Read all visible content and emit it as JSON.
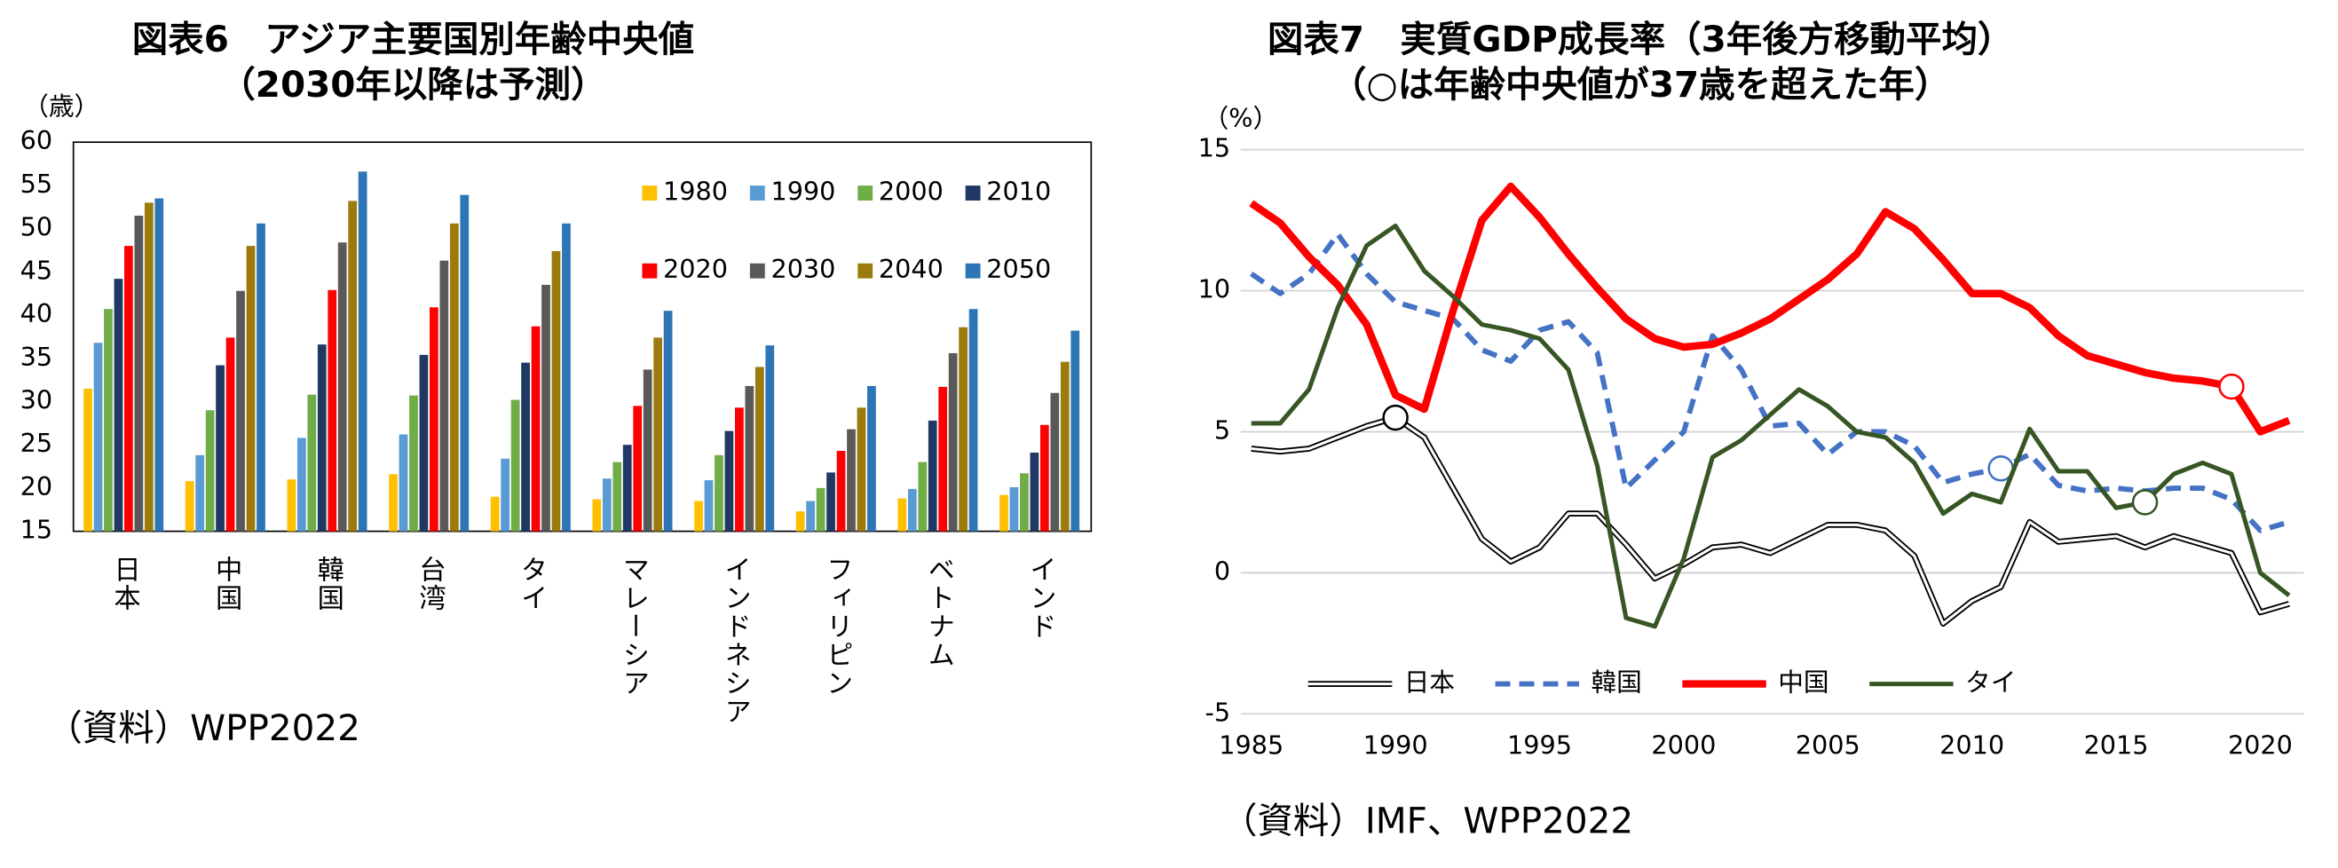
{
  "chart_data": [
    {
      "type": "bar",
      "title": "図表6　アジア主要国別年齢中央値",
      "subtitle": "（2030年以降は予測）",
      "y_label": "（歳）",
      "source": "（資料）WPP2022",
      "categories": [
        "日本",
        "中国",
        "韓国",
        "台湾",
        "タイ",
        "マレーシア",
        "インドネシア",
        "フィリピン",
        "ベトナム",
        "インド"
      ],
      "series": [
        {
          "name": "1980",
          "color": "#ffc000",
          "values": [
            31.5,
            20.8,
            21,
            21.6,
            19,
            18.7,
            18.5,
            17.3,
            18.8,
            19.2
          ]
        },
        {
          "name": "1990",
          "color": "#5b9bd5",
          "values": [
            36.8,
            23.8,
            25.8,
            26.2,
            23.4,
            21.1,
            20.9,
            18.5,
            19.9,
            20.1
          ]
        },
        {
          "name": "2000",
          "color": "#70ad47",
          "values": [
            40.7,
            29,
            30.8,
            30.7,
            30.2,
            23,
            23.8,
            20,
            23,
            21.7
          ]
        },
        {
          "name": "2010",
          "color": "#203864",
          "values": [
            44.2,
            34.2,
            36.6,
            35.4,
            34.5,
            25,
            26.6,
            21.8,
            27.8,
            24.1
          ]
        },
        {
          "name": "2020",
          "color": "#ff0000",
          "values": [
            48,
            37.4,
            42.9,
            40.9,
            38.7,
            29.5,
            29.3,
            24.3,
            31.7,
            27.3
          ]
        },
        {
          "name": "2030",
          "color": "#595959",
          "values": [
            51.5,
            42.8,
            48.4,
            46.3,
            43.5,
            33.7,
            31.8,
            26.8,
            35.6,
            31
          ]
        },
        {
          "name": "2040",
          "color": "#9c7a0c",
          "values": [
            53,
            48,
            53.2,
            50.6,
            47.4,
            37.4,
            34,
            29.3,
            38.6,
            34.6
          ]
        },
        {
          "name": "2050",
          "color": "#2e75b6",
          "values": [
            53.5,
            50.6,
            56.6,
            53.9,
            50.6,
            40.5,
            36.5,
            31.8,
            40.7,
            38.2
          ]
        }
      ],
      "ylim": [
        15,
        60
      ],
      "yticks": [
        15,
        20,
        25,
        30,
        35,
        40,
        45,
        50,
        55,
        60
      ],
      "grid": false,
      "legend": "upper right"
    },
    {
      "type": "line",
      "title": "図表7　実質GDP成長率（3年後方移動平均）",
      "subtitle": "（○は年齢中央値が37歳を超えた年）",
      "y_label": "（%）",
      "source": "（資料）IMF、WPP2022",
      "x": [
        1985,
        1986,
        1987,
        1988,
        1989,
        1990,
        1991,
        1992,
        1993,
        1994,
        1995,
        1996,
        1997,
        1998,
        1999,
        2000,
        2001,
        2002,
        2003,
        2004,
        2005,
        2006,
        2007,
        2008,
        2009,
        2010,
        2011,
        2012,
        2013,
        2014,
        2015,
        2016,
        2017,
        2018,
        2019,
        2020,
        2021
      ],
      "series": [
        {
          "name": "日本",
          "color": "#000000",
          "style": "double",
          "highlight_x": 1990,
          "values": [
            4.4,
            4.3,
            4.4,
            4.8,
            5.2,
            5.5,
            4.8,
            3.0,
            1.2,
            0.4,
            0.9,
            2.1,
            2.1,
            1.0,
            -0.2,
            0.3,
            0.9,
            1.0,
            0.7,
            1.2,
            1.7,
            1.7,
            1.5,
            0.6,
            -1.8,
            -1.0,
            -0.5,
            1.8,
            1.1,
            1.2,
            1.3,
            0.9,
            1.3,
            1.0,
            0.7,
            -1.4,
            -1.1
          ]
        },
        {
          "name": "韓国",
          "color": "#4472c4",
          "style": "dashed",
          "highlight_x": 2011,
          "values": [
            10.6,
            9.9,
            10.6,
            12.0,
            10.6,
            9.6,
            9.3,
            9.0,
            7.9,
            7.5,
            8.6,
            8.9,
            7.8,
            3.0,
            4.0,
            5.0,
            8.4,
            7.2,
            5.2,
            5.3,
            4.2,
            5.0,
            5.0,
            4.5,
            3.2,
            3.5,
            3.7,
            4.2,
            3.1,
            2.9,
            3.0,
            2.9,
            3.0,
            3.0,
            2.6,
            1.5,
            1.8
          ]
        },
        {
          "name": "中国",
          "color": "#ff0000",
          "style": "thick",
          "highlight_x": 2019,
          "values": [
            13.1,
            12.4,
            11.2,
            10.2,
            8.8,
            6.3,
            5.8,
            9.3,
            12.5,
            13.7,
            12.6,
            11.3,
            10.1,
            9.0,
            8.3,
            8.0,
            8.1,
            8.5,
            9.0,
            9.7,
            10.4,
            11.3,
            12.8,
            12.2,
            11.1,
            9.9,
            9.9,
            9.4,
            8.4,
            7.7,
            7.4,
            7.1,
            6.9,
            6.8,
            6.6,
            5.0,
            5.4
          ]
        },
        {
          "name": "タイ",
          "color": "#375623",
          "style": "solid",
          "highlight_x": 2016,
          "values": [
            5.3,
            5.3,
            6.5,
            9.4,
            11.6,
            12.3,
            10.7,
            9.8,
            8.8,
            8.6,
            8.3,
            7.2,
            3.8,
            -1.6,
            -1.9,
            0.5,
            4.1,
            4.7,
            5.6,
            6.5,
            5.9,
            5.0,
            4.8,
            3.9,
            2.1,
            2.8,
            2.5,
            5.1,
            3.6,
            3.6,
            2.3,
            2.5,
            3.5,
            3.9,
            3.5,
            0.0,
            -0.8
          ]
        }
      ],
      "xlim": [
        1985,
        2021.5
      ],
      "xticks": [
        1985,
        1990,
        1995,
        2000,
        2005,
        2010,
        2015,
        2020
      ],
      "ylim": [
        -5,
        15
      ],
      "yticks": [
        -5,
        0,
        5,
        10,
        15
      ],
      "grid": true,
      "legend": "lower center"
    }
  ]
}
